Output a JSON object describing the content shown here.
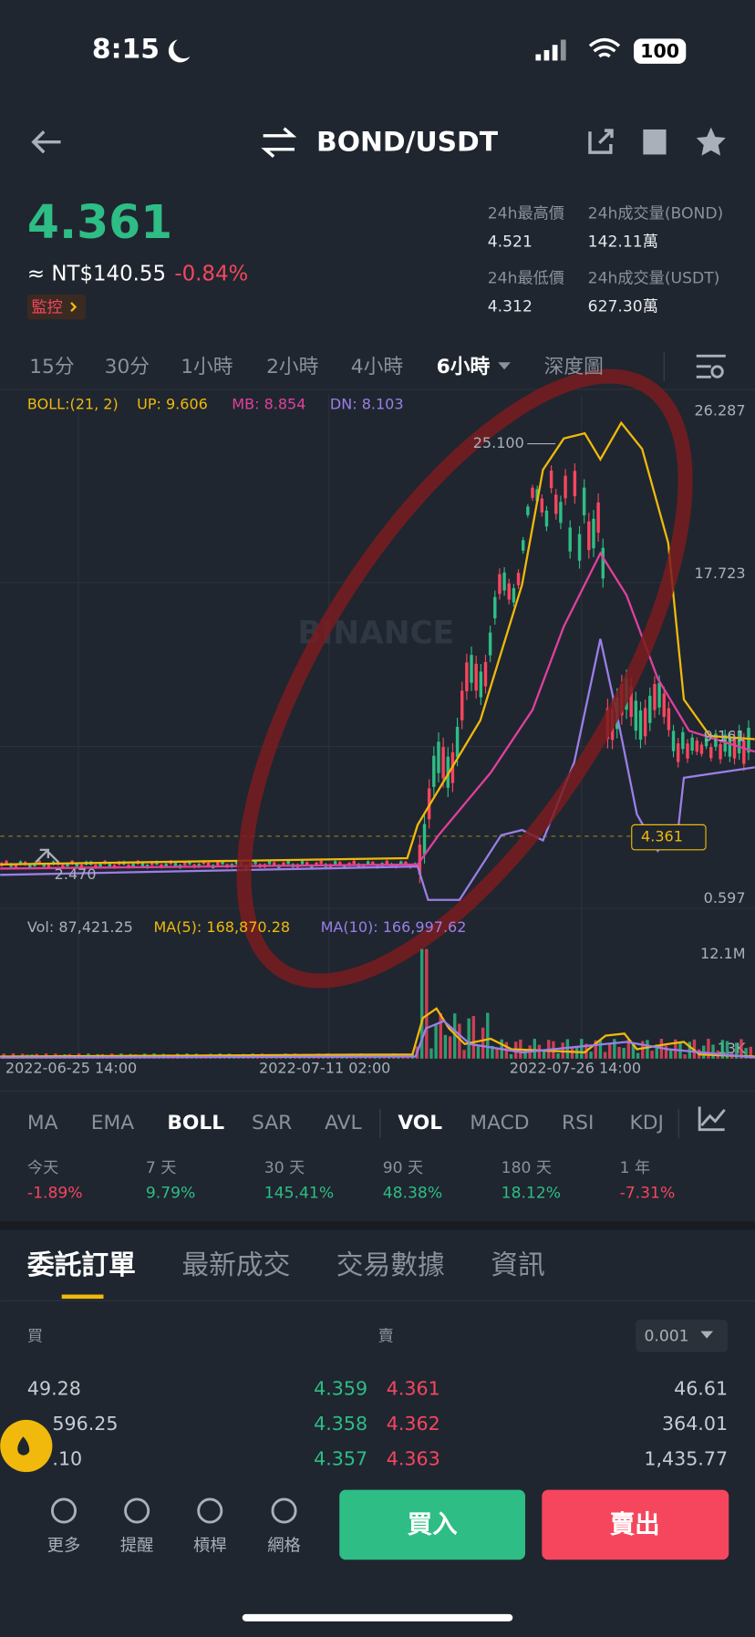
{
  "status": {
    "time": "8:15",
    "battery": "100"
  },
  "header": {
    "pair": "BOND/USDT"
  },
  "price": {
    "last": "4.361",
    "fiat": "≈ NT$140.55",
    "change": "-0.84%",
    "monitor": "監控"
  },
  "stats": [
    {
      "label": "24h最高價",
      "value": "4.521"
    },
    {
      "label": "24h成交量(BOND)",
      "value": "142.11萬"
    },
    {
      "label": "24h最低價",
      "value": "4.312"
    },
    {
      "label": "24h成交量(USDT)",
      "value": "627.30萬"
    }
  ],
  "intervals": [
    "15分",
    "30分",
    "1小時",
    "2小時",
    "4小時",
    "6小時",
    "深度圖"
  ],
  "boll": {
    "label": "BOLL:(21, 2)",
    "up": "UP: 9.606",
    "mb": "MB: 8.854",
    "dn": "DN: 8.103"
  },
  "price_axis": [
    "26.287",
    "17.723",
    "9.161",
    "0.597"
  ],
  "annotations": {
    "high": "25.100",
    "low": "2.470",
    "current": "4.361"
  },
  "watermark": "BINANCE",
  "volume": {
    "vol": "Vol: 87,421.25",
    "ma5": "MA(5): 168,870.28",
    "ma10": "MA(10): 166,997.62",
    "axis": [
      "12.1M",
      "13K"
    ]
  },
  "dates": [
    "2022-06-25 14:00",
    "2022-07-11 02:00",
    "2022-07-26 14:00"
  ],
  "indicators": [
    "MA",
    "EMA",
    "BOLL",
    "SAR",
    "AVL",
    "VOL",
    "MACD",
    "RSI",
    "KDJ"
  ],
  "performance": [
    {
      "period": "今天",
      "change": "-1.89%"
    },
    {
      "period": "7 天",
      "change": "9.79%"
    },
    {
      "period": "30 天",
      "change": "145.41%"
    },
    {
      "period": "90 天",
      "change": "48.38%"
    },
    {
      "period": "180 天",
      "change": "18.12%"
    },
    {
      "period": "1 年",
      "change": "-7.31%"
    }
  ],
  "tabs": [
    "委託訂單",
    "最新成交",
    "交易數據",
    "資訊"
  ],
  "orderbook": {
    "buy_label": "買",
    "sell_label": "賣",
    "precision": "0.001",
    "rows": [
      [
        "49.28",
        "4.359",
        "4.361",
        "46.61"
      ],
      [
        "596.25",
        "4.358",
        "4.362",
        "364.01"
      ],
      [
        ".10",
        "4.357",
        "4.363",
        "1,435.77"
      ]
    ]
  },
  "nav": [
    "更多",
    "提醒",
    "槓桿",
    "網格"
  ],
  "actions": {
    "buy": "買入",
    "sell": "賣出"
  }
}
